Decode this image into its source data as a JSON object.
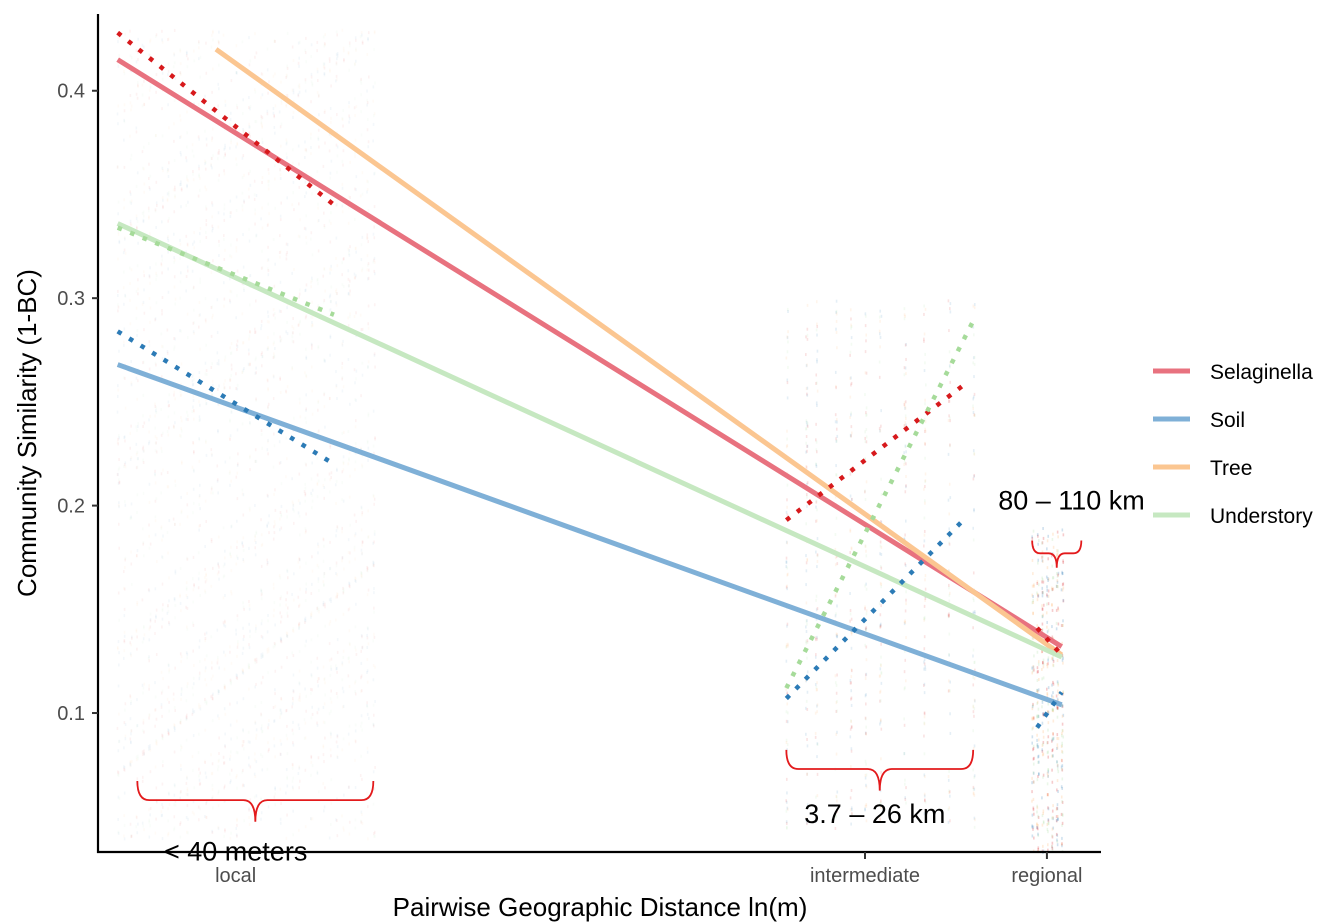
{
  "chart_data": {
    "type": "line",
    "xlabel": "Pairwise Geographic Distance ln(m)",
    "ylabel": "Community Similarity (1-BC)",
    "x_ticks": [
      {
        "label": "local",
        "x": 3.2
      },
      {
        "label": "intermediate",
        "x": 9.6
      },
      {
        "label": "regional",
        "x": 11.45
      }
    ],
    "y_ticks": [
      0.1,
      0.2,
      0.3,
      0.4
    ],
    "xlim": [
      1.8,
      12.0
    ],
    "ylim": [
      0.033,
      0.437
    ],
    "grid": false,
    "legend_position": "right",
    "series": [
      {
        "name": "Selaginella",
        "color": "#e8727f",
        "x": [
          2.0,
          11.6
        ],
        "y": [
          0.415,
          0.132
        ]
      },
      {
        "name": "Soil",
        "color": "#7fb0d7",
        "x": [
          2.0,
          11.6
        ],
        "y": [
          0.268,
          0.104
        ]
      },
      {
        "name": "Tree",
        "color": "#fbc691",
        "x": [
          3.0,
          11.6
        ],
        "y": [
          0.42,
          0.128
        ]
      },
      {
        "name": "Understory",
        "color": "#c6e8c1",
        "x": [
          2.0,
          11.6
        ],
        "y": [
          0.336,
          0.127
        ]
      }
    ],
    "dotted_fits": [
      {
        "series": "Selaginella",
        "color": "#d7191c",
        "segments": [
          {
            "x": [
              2.0,
              4.2
            ],
            "y": [
              0.428,
              0.345
            ]
          },
          {
            "x": [
              8.8,
              10.6
            ],
            "y": [
              0.193,
              0.258
            ]
          },
          {
            "x": [
              11.35,
              11.6
            ],
            "y": [
              0.141,
              0.128
            ]
          }
        ]
      },
      {
        "series": "Soil",
        "color": "#2c7bb6",
        "segments": [
          {
            "x": [
              2.0,
              4.2
            ],
            "y": [
              0.284,
              0.22
            ]
          },
          {
            "x": [
              8.8,
              10.6
            ],
            "y": [
              0.107,
              0.193
            ]
          },
          {
            "x": [
              11.35,
              11.6
            ],
            "y": [
              0.093,
              0.11
            ]
          }
        ]
      },
      {
        "series": "Understory",
        "color": "#a6db9a",
        "segments": [
          {
            "x": [
              2.0,
              4.2
            ],
            "y": [
              0.334,
              0.292
            ]
          },
          {
            "x": [
              8.8,
              10.7
            ],
            "y": [
              0.112,
              0.289
            ]
          }
        ]
      }
    ],
    "annotations": [
      {
        "text": "< 40 meters",
        "x": 3.2,
        "y": 0.029,
        "bracket_x": [
          2.2,
          4.6
        ],
        "bracket_y": 0.058
      },
      {
        "text": "3.7 – 26 km",
        "x": 9.7,
        "y": 0.047,
        "bracket_x": [
          8.8,
          10.7
        ],
        "bracket_y": 0.073
      },
      {
        "text": "80 – 110 km",
        "x": 11.7,
        "y": 0.198,
        "bracket_x": [
          11.3,
          11.8
        ],
        "bracket_y": 0.177
      }
    ],
    "bracket_color": "#e31a1c"
  }
}
